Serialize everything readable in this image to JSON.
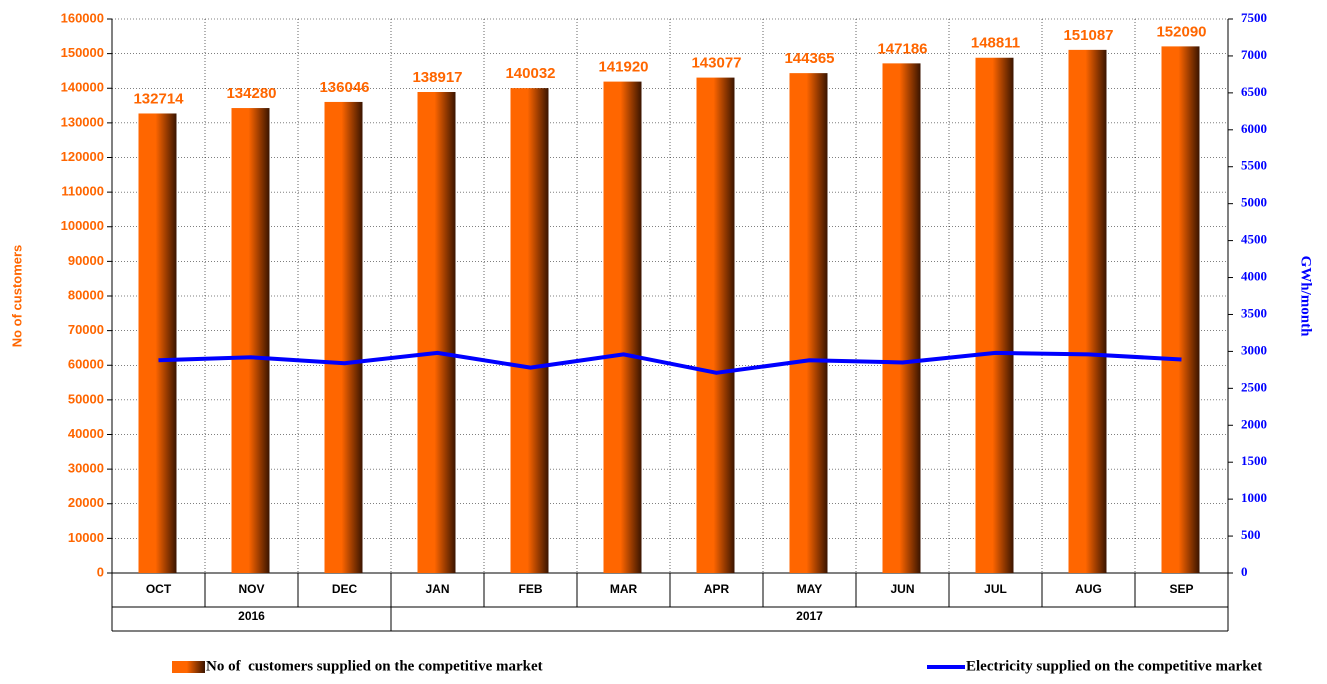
{
  "chart_data": {
    "type": "combo",
    "categories": [
      "OCT",
      "NOV",
      "DEC",
      "JAN",
      "FEB",
      "MAR",
      "APR",
      "MAY",
      "JUN",
      "JUL",
      "AUG",
      "SEP"
    ],
    "group_labels": [
      "2016",
      null,
      null,
      "2017",
      null,
      null,
      null,
      null,
      null,
      null,
      null,
      null
    ],
    "y_label": "No of customers",
    "y2_label": "GWh/month",
    "ylim": [
      0,
      160000
    ],
    "yticks": [
      0,
      10000,
      20000,
      30000,
      40000,
      50000,
      60000,
      70000,
      80000,
      90000,
      100000,
      110000,
      120000,
      130000,
      140000,
      150000,
      160000
    ],
    "y2lim": [
      0,
      7500
    ],
    "y2ticks": [
      0,
      500,
      1000,
      1500,
      2000,
      2500,
      3000,
      3500,
      4000,
      4500,
      5000,
      5500,
      6000,
      6500,
      7000,
      7500
    ],
    "grid": true,
    "series": [
      {
        "name": "No of  customers supplied on the competitive market",
        "type": "bar",
        "color": "#ff6600",
        "values": [
          132714,
          134280,
          136046,
          138917,
          140032,
          141920,
          143077,
          144365,
          147186,
          148811,
          151087,
          152090
        ]
      },
      {
        "name": "Electricity supplied on the competitive market",
        "type": "line",
        "axis": "y2",
        "color": "#0000ff",
        "values": [
          2880,
          2920,
          2840,
          2980,
          2780,
          2960,
          2710,
          2880,
          2850,
          2980,
          2960,
          2890
        ]
      }
    ]
  }
}
